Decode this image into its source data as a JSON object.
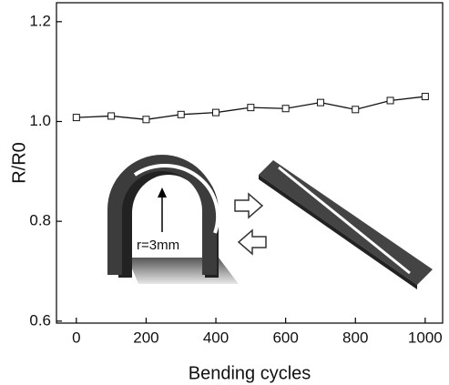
{
  "chart_data": {
    "type": "line",
    "x_label": "Bending cycles",
    "y_label": "R/R0",
    "x": [
      0,
      100,
      200,
      300,
      400,
      500,
      600,
      700,
      800,
      900,
      1000
    ],
    "series": [
      {
        "name": "R/R0",
        "color": "#111111",
        "values": [
          1.008,
          1.011,
          1.004,
          1.014,
          1.018,
          1.028,
          1.026,
          1.038,
          1.024,
          1.042,
          1.05
        ]
      }
    ],
    "xlim": [
      -57,
      1050
    ],
    "ylim": [
      0.596,
      1.238
    ],
    "xticks": [
      0,
      200,
      400,
      600,
      800,
      1000
    ],
    "yticks": [
      {
        "value": 0.6,
        "label": "0.6"
      },
      {
        "value": 0.8,
        "label": "0.8"
      },
      {
        "value": 1.0,
        "label": "1.0"
      },
      {
        "value": 1.2,
        "label": "1.2"
      }
    ],
    "annotations": [
      "r=3mm"
    ],
    "grid": false
  }
}
